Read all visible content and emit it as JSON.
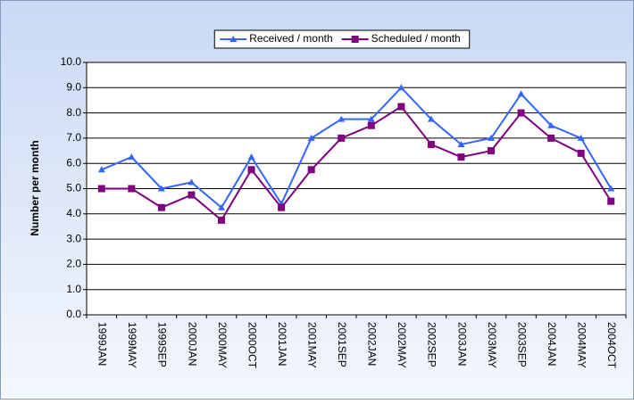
{
  "chart_data": {
    "type": "line",
    "y_label": "Number per month",
    "categories": [
      "1999JAN",
      "1999MAY",
      "1999SEP",
      "2000JAN",
      "2000MAY",
      "2000OCT",
      "2001JAN",
      "2001MAY",
      "2001SEP",
      "2002JAN",
      "2002MAY",
      "2002SEP",
      "2003JAN",
      "2003MAY",
      "2003SEP",
      "2004JAN",
      "2004MAY",
      "2004OCT"
    ],
    "series": [
      {
        "name": "Received / month",
        "color": "#3366ff",
        "marker": "triangle",
        "values": [
          5.75,
          6.25,
          5.0,
          5.25,
          4.25,
          6.25,
          4.4,
          7.0,
          7.75,
          7.75,
          9.0,
          7.75,
          6.75,
          7.0,
          8.75,
          7.5,
          7.0,
          5.0
        ]
      },
      {
        "name": "Scheduled / month",
        "color": "#800080",
        "marker": "square",
        "values": [
          5.0,
          5.0,
          4.25,
          4.75,
          3.75,
          5.75,
          4.25,
          5.75,
          7.0,
          7.5,
          8.25,
          6.75,
          6.25,
          6.5,
          8.0,
          7.0,
          6.4,
          4.5
        ]
      }
    ],
    "ylim": [
      0,
      10
    ],
    "yticks": [
      {
        "value": 0,
        "label": "0.0"
      },
      {
        "value": 1,
        "label": "1.0"
      },
      {
        "value": 2,
        "label": "2.0"
      },
      {
        "value": 3,
        "label": "3.0"
      },
      {
        "value": 4,
        "label": "4.0"
      },
      {
        "value": 5,
        "label": "5.0"
      },
      {
        "value": 6,
        "label": "6.0"
      },
      {
        "value": 7,
        "label": "7.0"
      },
      {
        "value": 8,
        "label": "8.0"
      },
      {
        "value": 9,
        "label": "9.0"
      },
      {
        "value": 10,
        "label": "10.0"
      }
    ],
    "grid": true,
    "legend": "top"
  }
}
